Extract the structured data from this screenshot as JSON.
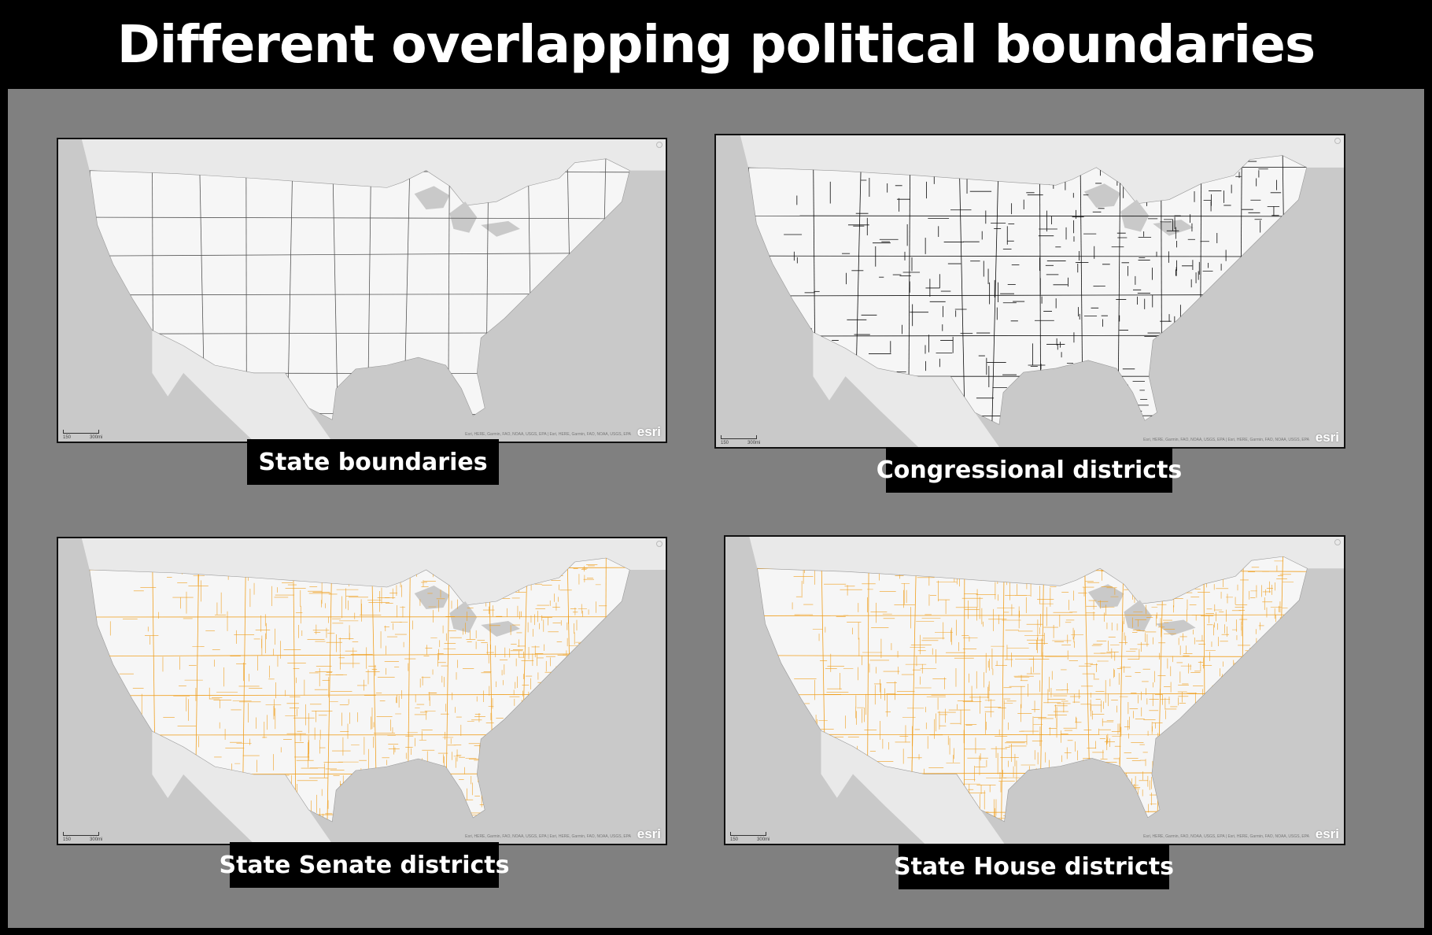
{
  "title": "Different overlapping political boundaries",
  "maps": [
    {
      "caption": "State boundaries",
      "line_color": "#555555",
      "style": "states"
    },
    {
      "caption": "Congressional districts",
      "line_color": "#111111",
      "style": "congressional"
    },
    {
      "caption": "State Senate districts",
      "line_color": "#f0a020",
      "style": "senate"
    },
    {
      "caption": "State House districts",
      "line_color": "#f0a020",
      "style": "house"
    }
  ],
  "scale": {
    "label_1": "150",
    "label_2": "300mi"
  },
  "attribution": "Esri, HERE, Garmin, FAO, NOAA, USGS, EPA | Esri, HERE, Garmin, FAO, NOAA, USGS, EPA",
  "logo": "esri",
  "colors": {
    "land": "#f6f6f6",
    "water": "#c9c9c9",
    "neighbor": "#e9e9e9",
    "background": "#808080"
  }
}
